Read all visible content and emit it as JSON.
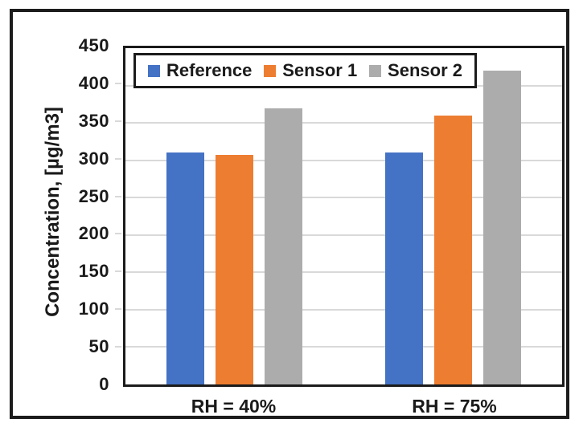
{
  "chart_data": {
    "type": "bar",
    "title": "",
    "xlabel": "",
    "ylabel": "Concentration, [µg/m3]",
    "categories": [
      "RH = 40%",
      "RH = 75%"
    ],
    "series": [
      {
        "name": "Reference",
        "color": "#4472c4",
        "values": [
          310,
          310
        ]
      },
      {
        "name": "Sensor 1",
        "color": "#ed7d31",
        "values": [
          307,
          360
        ]
      },
      {
        "name": "Sensor 2",
        "color": "#acacac",
        "values": [
          369,
          420
        ]
      }
    ],
    "ylim": [
      0,
      450
    ],
    "ytick_step": 50,
    "yticks": [
      450,
      400,
      350,
      300,
      250,
      200,
      150,
      100,
      50,
      0
    ],
    "grid": true,
    "gridline_color": "#d9d9d9",
    "legend_position": "top-inside",
    "plot_border_color": "#1b1b1b",
    "frame_border_color": "#1c1c1c"
  }
}
